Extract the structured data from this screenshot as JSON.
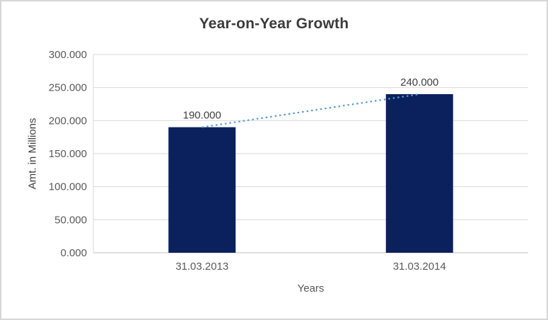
{
  "chart_data": {
    "type": "bar",
    "title": "Year-on-Year Growth",
    "categories": [
      "31.03.2013",
      "31.03.2014"
    ],
    "values": [
      190000,
      240000
    ],
    "value_labels": [
      "190.000",
      "240.000"
    ],
    "xlabel": "Years",
    "ylabel": "Amt. in Millions",
    "ylim": [
      0,
      300000
    ],
    "ytick_step": 50000,
    "ytick_labels": [
      "0.000",
      "50.000",
      "100.000",
      "150.000",
      "200.000",
      "250.000",
      "300.000"
    ],
    "grid": true,
    "legend": "none",
    "bar_color": "#0A215E",
    "gridline_color": "#d9d9d9",
    "axis_line_color": "#bfbfbf",
    "tick_label_color": "#595959",
    "data_label_color": "#404040",
    "trendline_color": "#5B9BD5",
    "trendline_style": "dotted"
  }
}
